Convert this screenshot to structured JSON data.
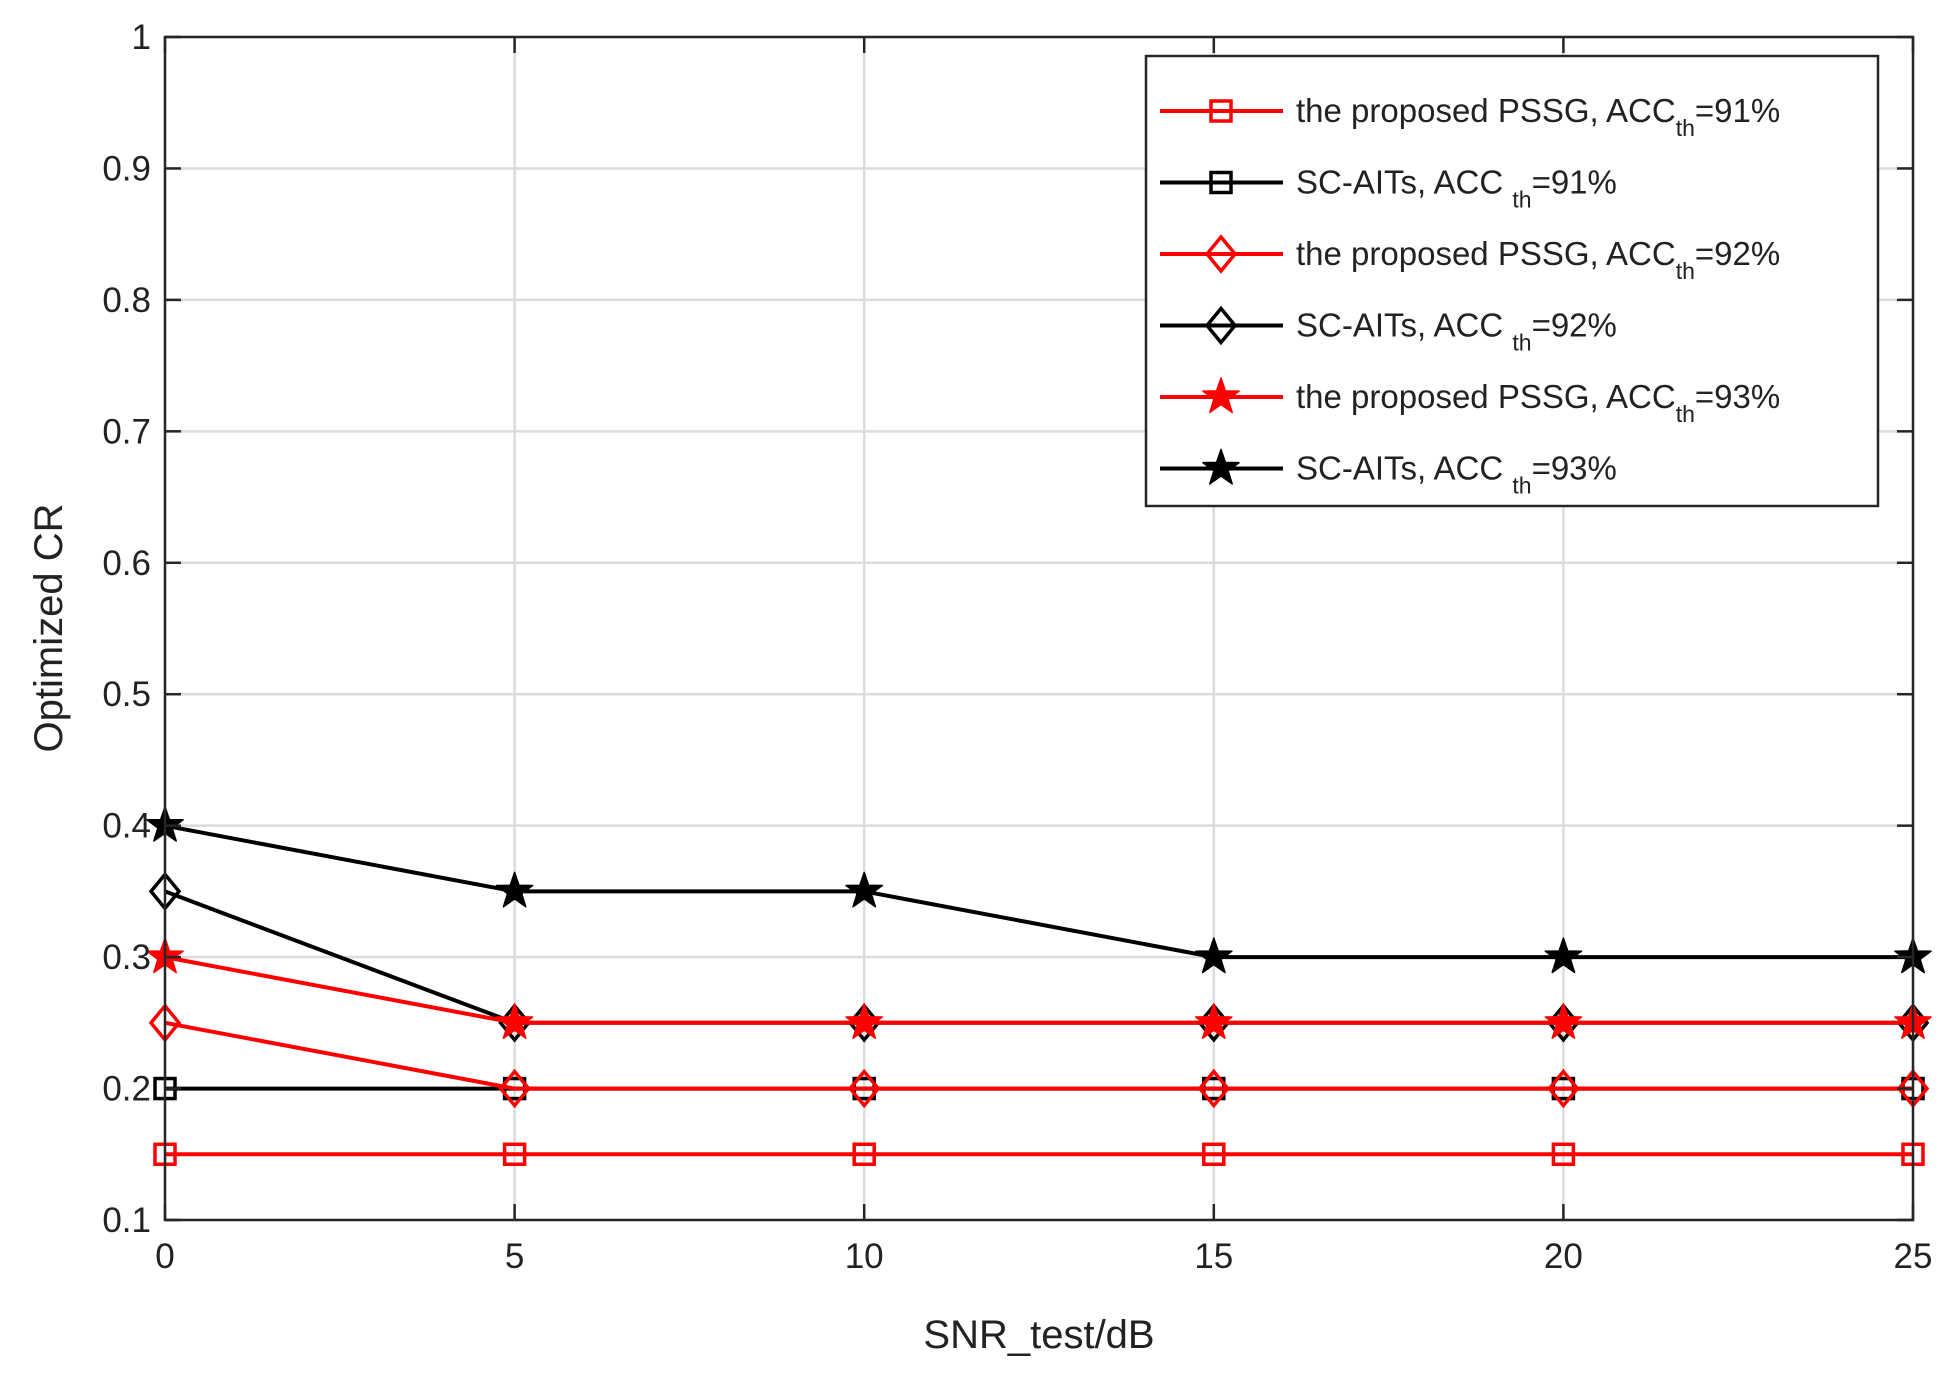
{
  "chart_data": {
    "type": "line",
    "title": "",
    "xlabel": "SNR_test/dB",
    "ylabel": "Optimized CR",
    "xlim": [
      0,
      25
    ],
    "ylim": [
      0.1,
      1
    ],
    "x_ticks": [
      0,
      5,
      10,
      15,
      20,
      25
    ],
    "x_tick_labels": [
      "0",
      "5",
      "10",
      "15",
      "20",
      "25"
    ],
    "y_ticks": [
      0.1,
      0.2,
      0.3,
      0.4,
      0.5,
      0.6,
      0.7,
      0.8,
      0.9,
      1
    ],
    "y_tick_labels": [
      "0.1",
      "0.2",
      "0.3",
      "0.4",
      "0.5",
      "0.6",
      "0.7",
      "0.8",
      "0.9",
      "1"
    ],
    "grid": true,
    "legend_position": "top-right",
    "x": [
      0,
      5,
      10,
      15,
      20,
      25
    ],
    "series": [
      {
        "name": "the proposed PSSG, ACC",
        "sub": "th",
        "suffix": "=91%",
        "color": "#ff0000",
        "marker": "square",
        "values": [
          0.15,
          0.15,
          0.15,
          0.15,
          0.15,
          0.15
        ]
      },
      {
        "name": "SC-AITs, ACC ",
        "sub": "th",
        "suffix": "=91%",
        "color": "#000000",
        "marker": "square",
        "values": [
          0.2,
          0.2,
          0.2,
          0.2,
          0.2,
          0.2
        ]
      },
      {
        "name": "the proposed PSSG, ACC",
        "sub": "th",
        "suffix": "=92%",
        "color": "#ff0000",
        "marker": "diamond",
        "values": [
          0.25,
          0.2,
          0.2,
          0.2,
          0.2,
          0.2
        ]
      },
      {
        "name": "SC-AITs, ACC ",
        "sub": "th",
        "suffix": "=92%",
        "color": "#000000",
        "marker": "diamond",
        "values": [
          0.35,
          0.25,
          0.25,
          0.25,
          0.25,
          0.25
        ]
      },
      {
        "name": "the proposed PSSG, ACC",
        "sub": "th",
        "suffix": "=93%",
        "color": "#ff0000",
        "marker": "star",
        "values": [
          0.3,
          0.25,
          0.25,
          0.25,
          0.25,
          0.25
        ]
      },
      {
        "name": "SC-AITs, ACC ",
        "sub": "th",
        "suffix": "=93%",
        "color": "#000000",
        "marker": "star",
        "values": [
          0.4,
          0.35,
          0.35,
          0.3,
          0.3,
          0.3
        ]
      }
    ]
  }
}
